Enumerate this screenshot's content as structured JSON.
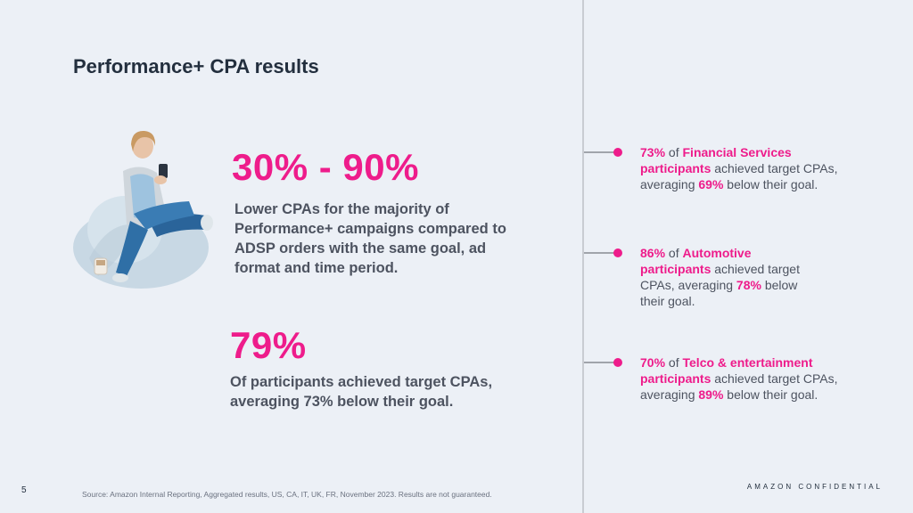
{
  "title": "Performance+ CPA results",
  "stats": [
    {
      "value": "30% - 90%",
      "description": "Lower CPAs for the majority of Performance+ campaigns compared to ADSP orders with the same goal, ad format and time period."
    },
    {
      "value": "79%",
      "description": "Of participants achieved target CPAs, averaging 73% below their goal."
    }
  ],
  "bullets": [
    {
      "pct": "73%",
      "of": " of ",
      "segment": "Financial Services participants",
      "mid": " achieved target CPAs, averaging ",
      "below_pct": "69%",
      "end": " below their goal."
    },
    {
      "pct": "86%",
      "of": " of ",
      "segment": "Automotive participants",
      "mid": " achieved target CPAs, averaging ",
      "below_pct": "78%",
      "end": " below their goal."
    },
    {
      "pct": "70%",
      "of": " of ",
      "segment": "Telco & entertainment participants",
      "mid": " achieved target CPAs, averaging ",
      "below_pct": "89%",
      "end": " below their goal."
    }
  ],
  "footer": {
    "page_number": "5",
    "source": "Source: Amazon Internal Reporting, Aggregated results, US, CA, IT, UK, FR,  November 2023. Results are not guaranteed.",
    "confidential": "AMAZON CONFIDENTIAL"
  },
  "colors": {
    "accent": "#ee1c8b",
    "background": "#ecf0f6",
    "title": "#232f3e",
    "body_text": "#4d5360"
  },
  "image": {
    "subject": "person-on-beanbag-icon"
  }
}
